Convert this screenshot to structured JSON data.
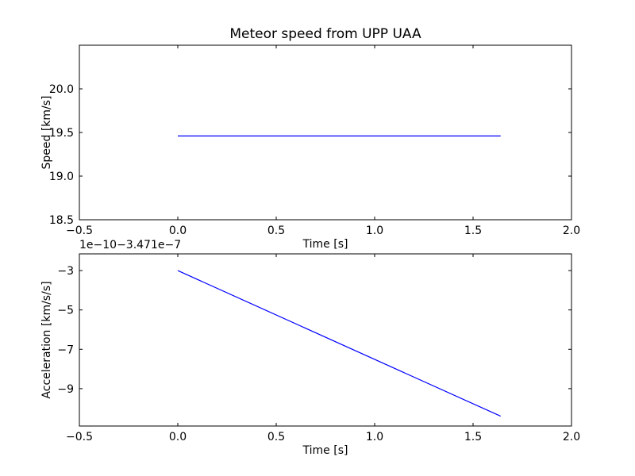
{
  "figure": {
    "background": "#ffffff",
    "line_color": "#0000ff",
    "axis_color": "#000000"
  },
  "chart_data": [
    {
      "type": "line",
      "title": "Meteor speed from  UPP UAA",
      "xlabel": "Time [s]",
      "ylabel": "Speed [km/s]",
      "xlim": [
        -0.5,
        2.0
      ],
      "ylim": [
        18.5,
        20.5
      ],
      "xticks": [
        -0.5,
        0.0,
        0.5,
        1.0,
        1.5,
        2.0
      ],
      "xtick_labels": [
        "−0.5",
        "0.0",
        "0.5",
        "1.0",
        "1.5",
        "2.0"
      ],
      "yticks": [
        18.5,
        19.0,
        19.5,
        20.0
      ],
      "ytick_labels": [
        "18.5",
        "19.0",
        "19.5",
        "20.0"
      ],
      "grid": false,
      "legend": "none",
      "offset_text": "",
      "series": [
        {
          "name": "speed",
          "color": "#0000ff",
          "x": [
            0.0,
            1.64
          ],
          "y": [
            19.46,
            19.46
          ]
        }
      ]
    },
    {
      "type": "line",
      "title": "",
      "xlabel": "Time [s]",
      "ylabel": "Acceleration [km/s/s]",
      "xlim": [
        -0.5,
        2.0
      ],
      "ylim": [
        -10.9,
        -2.15
      ],
      "xticks": [
        -0.5,
        0.0,
        0.5,
        1.0,
        1.5,
        2.0
      ],
      "xtick_labels": [
        "−0.5",
        "0.0",
        "0.5",
        "1.0",
        "1.5",
        "2.0"
      ],
      "yticks": [
        -3,
        -5,
        -7,
        -9
      ],
      "ytick_labels": [
        "−3",
        "−5",
        "−7",
        "−9"
      ],
      "grid": false,
      "legend": "none",
      "offset_text": "1e−10−3.471e−7",
      "series": [
        {
          "name": "acceleration",
          "color": "#0000ff",
          "x": [
            0.0,
            1.64
          ],
          "y": [
            -3.0,
            -10.4
          ]
        }
      ]
    }
  ]
}
